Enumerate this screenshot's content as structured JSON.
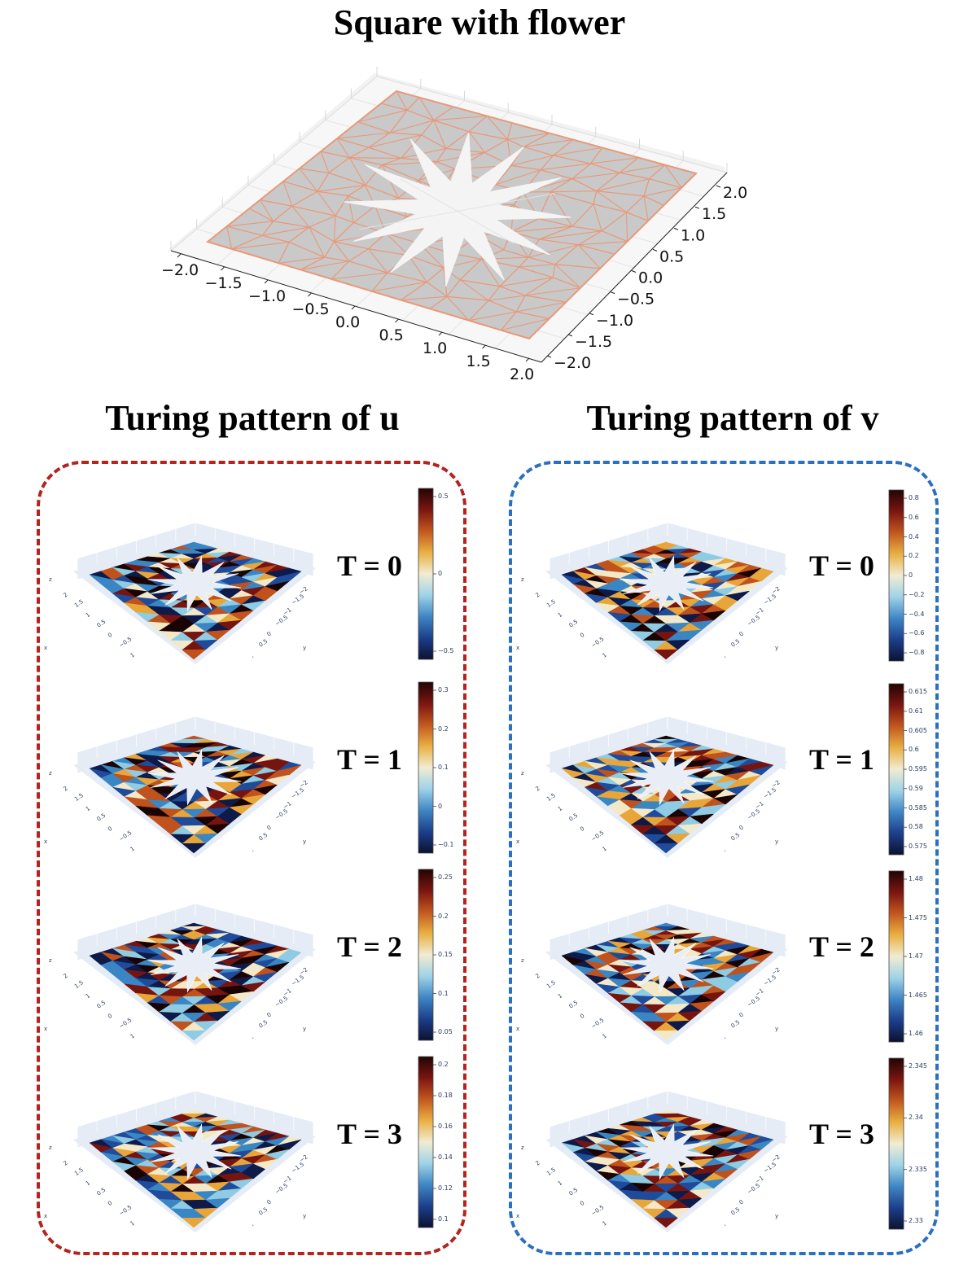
{
  "titles": {
    "main": "Square with flower",
    "u": "Turing pattern of u",
    "v": "Turing pattern of v"
  },
  "mesh_plot": {
    "x_ticks": [
      "−2.0",
      "−1.5",
      "−1.0",
      "−0.5",
      "0.0",
      "0.5",
      "1.0",
      "1.5",
      "2.0"
    ],
    "y_ticks": [
      "2.0",
      "1.5",
      "1.0",
      "0.5",
      "0.0",
      "−0.5",
      "−1.0",
      "−1.5",
      "−2.0"
    ],
    "mesh_color": "#e8997a",
    "fill_color": "#c9c9c9"
  },
  "surface_axes": {
    "z": "z",
    "x": "x",
    "y": "y",
    "x_ticks": [
      "2",
      "1.5",
      "1",
      "0.5",
      "0",
      "−0.5",
      "1"
    ],
    "y_ticks": [
      "−2",
      "−1.5",
      "−1",
      "−0.5",
      "0",
      "0.5",
      ","
    ]
  },
  "u_panel": {
    "color": "#b3241f",
    "items": [
      {
        "label": "T = 0",
        "ticks": [
          "0.5",
          "0",
          "−0.5"
        ]
      },
      {
        "label": "T = 1",
        "ticks": [
          "0.3",
          "0.2",
          "0.1",
          "0",
          "−0.1"
        ]
      },
      {
        "label": "T = 2",
        "ticks": [
          "0.25",
          "0.2",
          "0.15",
          "0.1",
          "0.05"
        ]
      },
      {
        "label": "T = 3",
        "ticks": [
          "0.2",
          "0.18",
          "0.16",
          "0.14",
          "0.12",
          "0.1"
        ]
      }
    ]
  },
  "v_panel": {
    "color": "#2b70c0",
    "items": [
      {
        "label": "T = 0",
        "ticks": [
          "0.8",
          "0.6",
          "0.4",
          "0.2",
          "0",
          "−0.2",
          "−0.4",
          "−0.6",
          "−0.8"
        ]
      },
      {
        "label": "T = 1",
        "ticks": [
          "0.615",
          "0.61",
          "0.605",
          "0.6",
          "0.595",
          "0.59",
          "0.585",
          "0.58",
          "0.575"
        ]
      },
      {
        "label": "T = 2",
        "ticks": [
          "1.48",
          "1.475",
          "1.47",
          "1.465",
          "1.46"
        ]
      },
      {
        "label": "T = 3",
        "ticks": [
          "2.345",
          "2.34",
          "2.335",
          "2.33"
        ]
      }
    ]
  }
}
